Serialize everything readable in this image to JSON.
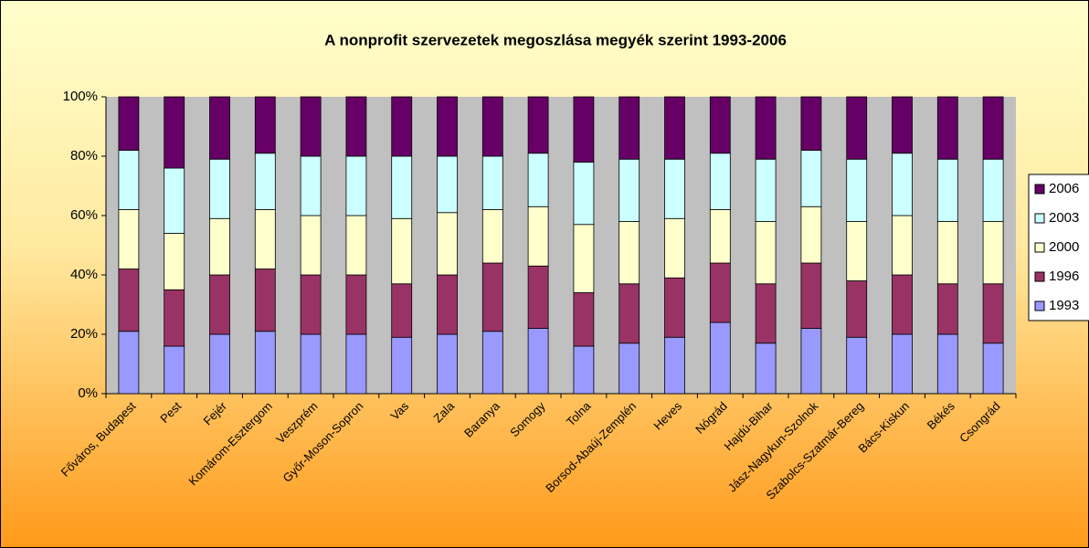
{
  "chart_data": {
    "type": "stacked_bar_100",
    "title": "A nonprofit szervezetek megoszlása megyék szerint 1993-2006",
    "categories": [
      "Főváros, Budapest",
      "Pest",
      "Fejér",
      "Komárom-Esztergom",
      "Veszprém",
      "Győr-Moson-Sopron",
      "Vas",
      "Zala",
      "Baranya",
      "Somogy",
      "Tolna",
      "Borsod-Abaúj-Zemplén",
      "Heves",
      "Nógrád",
      "Hajdú-Bihar",
      "Jász-Nagykun-Szolnok",
      "Szabolcs-Szatmár-Bereg",
      "Bács-Kiskun",
      "Békés",
      "Csongrád"
    ],
    "series": [
      {
        "name": "1993",
        "color": "#9999ff",
        "values": [
          21,
          16,
          20,
          21,
          20,
          20,
          19,
          20,
          21,
          22,
          16,
          17,
          19,
          24,
          17,
          22,
          19,
          20,
          20,
          17
        ]
      },
      {
        "name": "1996",
        "color": "#993366",
        "values": [
          21,
          19,
          20,
          21,
          20,
          20,
          18,
          20,
          23,
          21,
          18,
          20,
          20,
          20,
          20,
          22,
          19,
          20,
          17,
          20
        ]
      },
      {
        "name": "2000",
        "color": "#ffffcc",
        "values": [
          20,
          19,
          19,
          20,
          20,
          20,
          22,
          21,
          18,
          20,
          23,
          21,
          20,
          18,
          21,
          19,
          20,
          20,
          21,
          21
        ]
      },
      {
        "name": "2003",
        "color": "#ccffff",
        "values": [
          20,
          22,
          20,
          19,
          20,
          20,
          21,
          19,
          18,
          18,
          21,
          21,
          20,
          19,
          21,
          19,
          21,
          21,
          21,
          21
        ]
      },
      {
        "name": "2006",
        "color": "#660066",
        "values": [
          18,
          24,
          21,
          19,
          20,
          20,
          20,
          20,
          20,
          19,
          22,
          21,
          21,
          19,
          21,
          18,
          21,
          19,
          21,
          21
        ]
      }
    ],
    "ylim": [
      0,
      100
    ],
    "yticks": [
      {
        "value": 0,
        "label": "0%"
      },
      {
        "value": 20,
        "label": "20%"
      },
      {
        "value": 40,
        "label": "40%"
      },
      {
        "value": 60,
        "label": "60%"
      },
      {
        "value": 80,
        "label": "80%"
      },
      {
        "value": 100,
        "label": "100%"
      }
    ],
    "grid": false,
    "legend": "right"
  }
}
